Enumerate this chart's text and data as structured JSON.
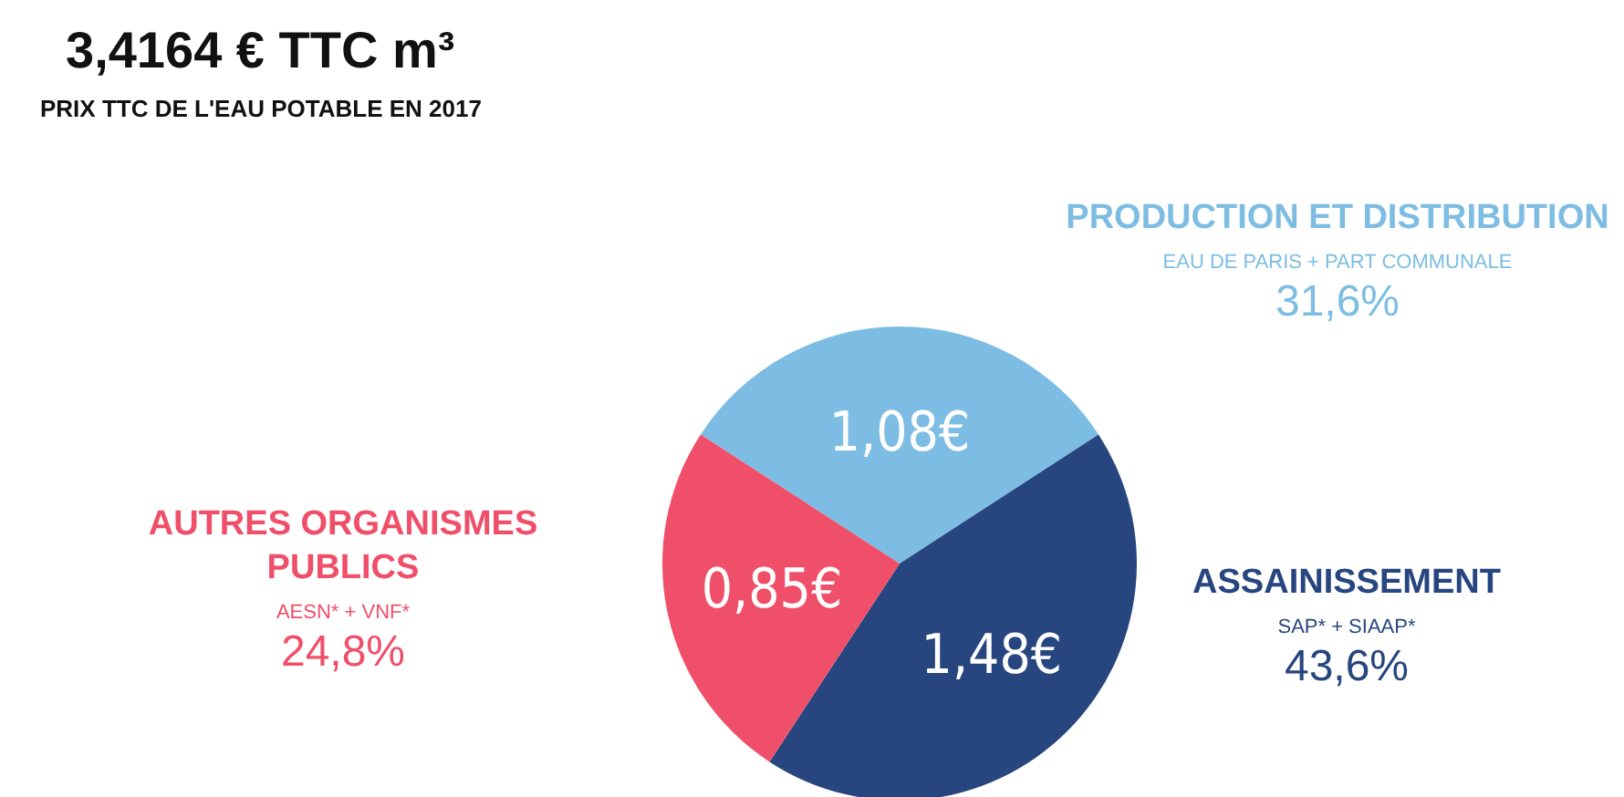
{
  "chart_data": {
    "type": "pie",
    "title": "3,4164 € TTC m³",
    "subtitle": "PRIX TTC DE L'EAU POTABLE EN 2017",
    "categories": [
      "PRODUCTION ET DISTRIBUTION",
      "ASSAINISSEMENT",
      "AUTRES ORGANISMES PUBLICS"
    ],
    "values": [
      1.08,
      1.48,
      0.85
    ],
    "colors": [
      "#7dbde3",
      "#27467f",
      "#f04f69"
    ],
    "value_labels": [
      "1,08€",
      "1,48€",
      "0,85€"
    ],
    "annotations": [
      "EAU DE PARIS + PART COMMUNALE",
      "31,6%",
      "SAP* + SIAAP*",
      "43,6%",
      "AESN* + VNF*",
      "24,8%"
    ]
  }
}
